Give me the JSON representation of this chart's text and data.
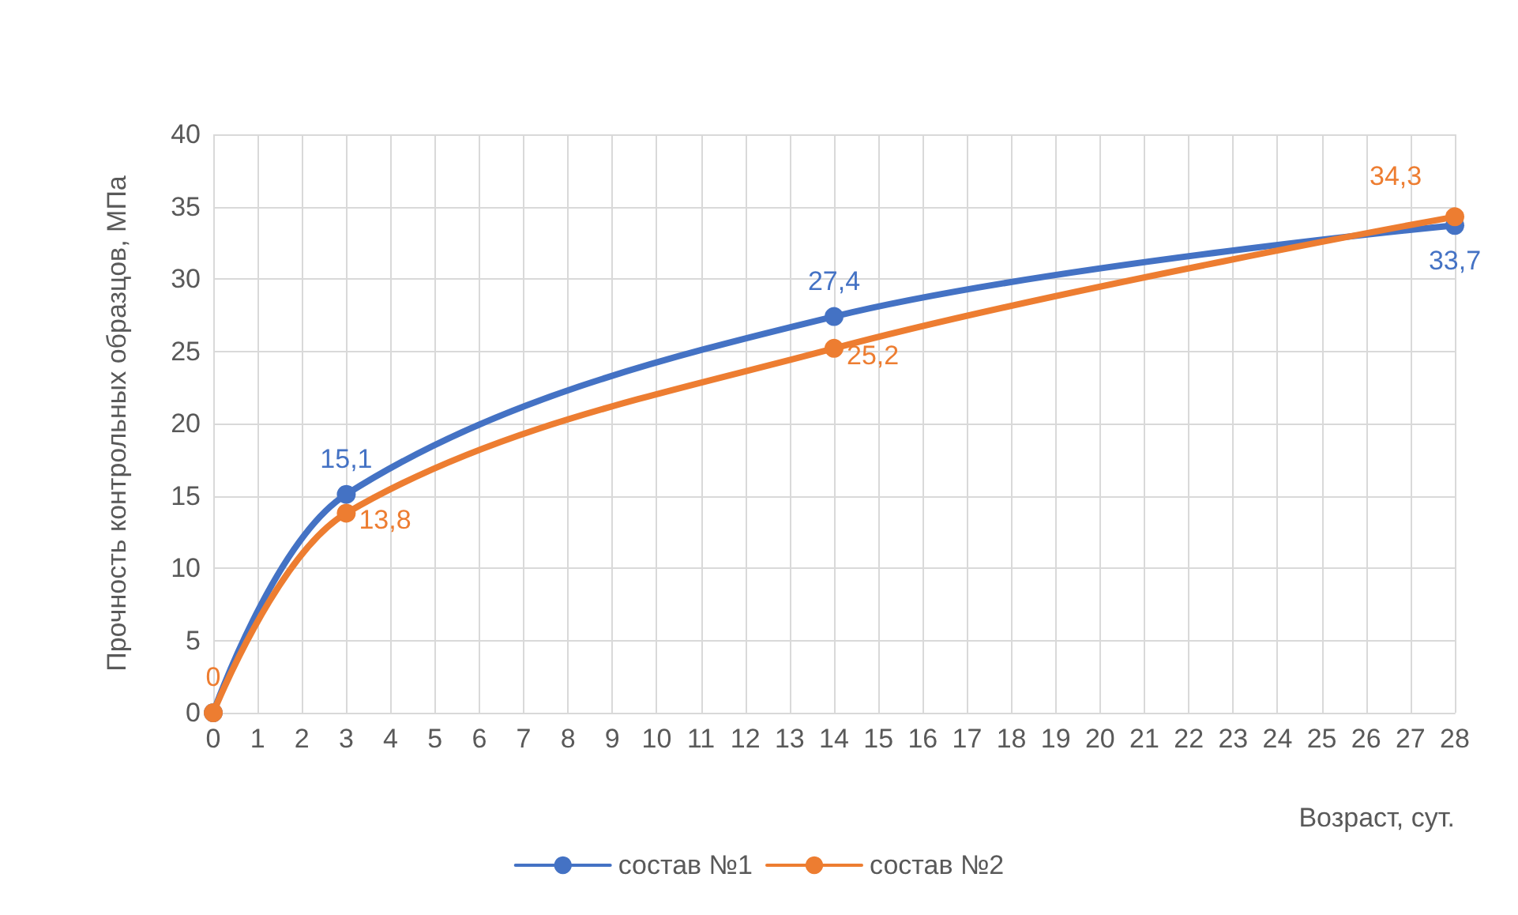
{
  "chart_data": {
    "type": "line",
    "xlabel": "Возраст, сут.",
    "ylabel": "Прочность контрольных образцов, МПа",
    "x": [
      0,
      3,
      14,
      28
    ],
    "series": [
      {
        "name": "состав №1",
        "color": "#4472c4",
        "values": [
          0,
          15.1,
          27.4,
          33.7
        ],
        "value_labels": [
          null,
          "15,1",
          "27,4",
          "33,7"
        ]
      },
      {
        "name": "состав №2",
        "color": "#ed7d31",
        "values": [
          0,
          13.8,
          25.2,
          34.3
        ],
        "value_labels": [
          "0",
          "13,8",
          "25,2",
          "34,3"
        ]
      }
    ],
    "xlim": [
      0,
      28
    ],
    "xticks": [
      0,
      1,
      2,
      3,
      4,
      5,
      6,
      7,
      8,
      9,
      10,
      11,
      12,
      13,
      14,
      15,
      16,
      17,
      18,
      19,
      20,
      21,
      22,
      23,
      24,
      25,
      26,
      27,
      28
    ],
    "ylim": [
      0,
      40
    ],
    "yticks": [
      0,
      5,
      10,
      15,
      20,
      25,
      30,
      35,
      40
    ],
    "grid": true,
    "legend": "bottom",
    "marker": "circle",
    "line_style": "solid"
  }
}
